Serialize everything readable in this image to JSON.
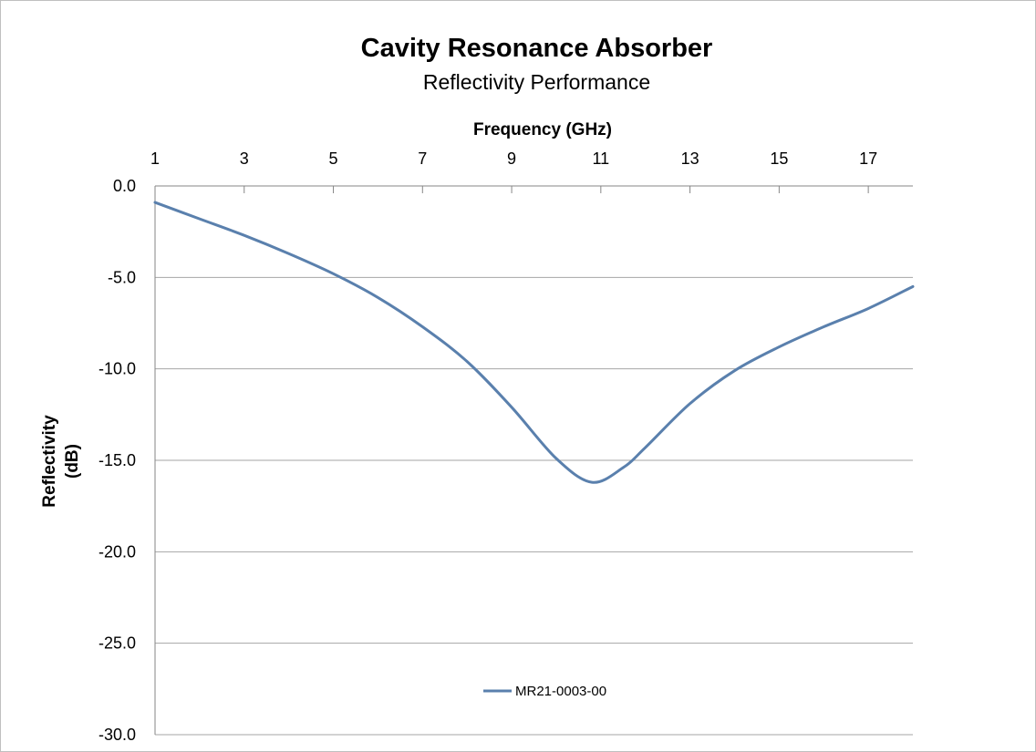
{
  "chart_data": {
    "type": "line",
    "title": "Cavity Resonance Absorber",
    "subtitle": "Reflectivity Performance",
    "xlabel": "Frequency (GHz)",
    "ylabel": "Reflectivity (dB)",
    "ylabel_lines": [
      "Reflectivity",
      "(dB)"
    ],
    "xlim": [
      1,
      18
    ],
    "ylim": [
      -30,
      0
    ],
    "x_ticks": [
      1,
      3,
      5,
      7,
      9,
      11,
      13,
      15,
      17
    ],
    "y_ticks": [
      0,
      -5,
      -10,
      -15,
      -20,
      -25,
      -30
    ],
    "y_tick_labels": [
      "0.0",
      "-5.0",
      "-10.0",
      "-15.0",
      "-20.0",
      "-25.0",
      "-30.0"
    ],
    "x_axis_position": "top",
    "grid": "horizontal",
    "legend_position": "bottom-center",
    "series": [
      {
        "name": "MR21-0003-00",
        "color": "#5a80ad",
        "x": [
          1,
          2,
          3,
          4,
          5,
          6,
          7,
          8,
          9,
          10,
          10.8,
          11.5,
          12,
          13,
          14,
          15,
          16,
          17,
          18
        ],
        "y": [
          -0.9,
          -1.8,
          -2.7,
          -3.7,
          -4.8,
          -6.1,
          -7.7,
          -9.6,
          -12.1,
          -14.9,
          -16.2,
          -15.4,
          -14.3,
          -11.9,
          -10.1,
          -8.8,
          -7.7,
          -6.7,
          -5.5
        ]
      }
    ]
  }
}
